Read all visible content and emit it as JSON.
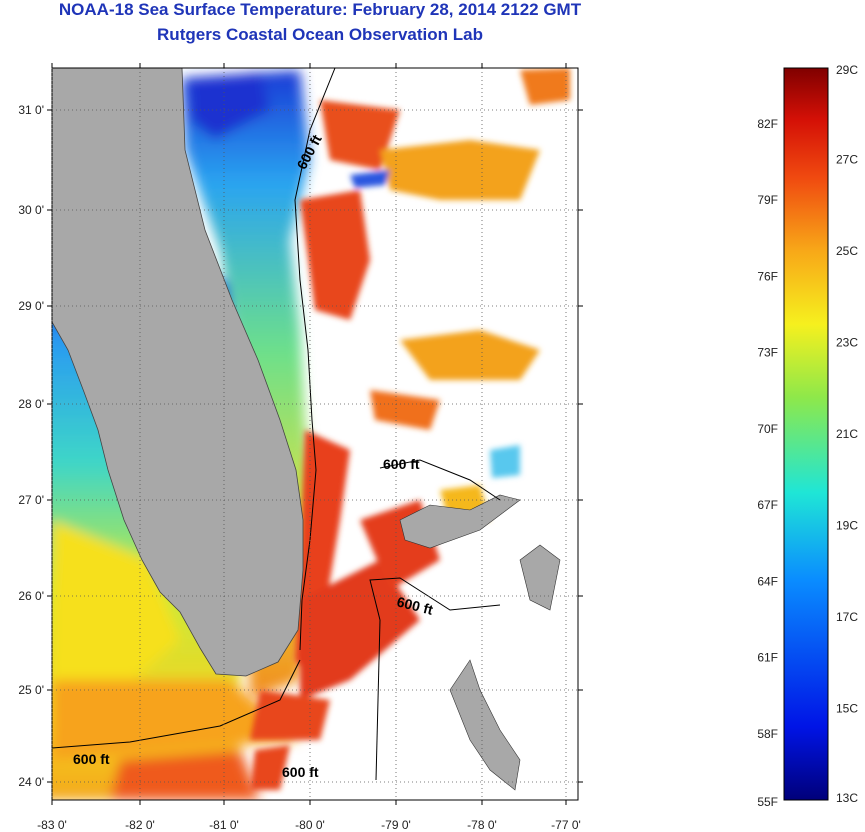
{
  "header": {
    "title": "NOAA-18 Sea Surface Temperature:  February 28, 2014 2122 GMT",
    "subtitle": "Rutgers Coastal Ocean Observation Lab"
  },
  "map": {
    "lat_labels": [
      "31 0'",
      "30 0'",
      "29 0'",
      "28 0'",
      "27 0'",
      "26 0'",
      "25 0'",
      "24 0'"
    ],
    "lon_labels": [
      "-83 0'",
      "-82 0'",
      "-81 0'",
      "-80 0'",
      "-79 0'",
      "-78 0'",
      "-77 0'"
    ],
    "contour_labels": [
      "600 ft",
      "600 ft",
      "600 ft",
      "600 ft",
      "600 ft"
    ],
    "colors": {
      "land": "#a8a8a8",
      "warm": "#e8401a",
      "cool": "#1d3fd6",
      "mid": "#f2d21a"
    }
  },
  "colorbar": {
    "celsius": [
      "29C",
      "27C",
      "25C",
      "23C",
      "21C",
      "19C",
      "17C",
      "15C",
      "13C"
    ],
    "fahrenheit": [
      "82F",
      "79F",
      "76F",
      "73F",
      "70F",
      "67F",
      "64F",
      "61F",
      "58F",
      "55F"
    ],
    "min_c": 13,
    "max_c": 29
  }
}
